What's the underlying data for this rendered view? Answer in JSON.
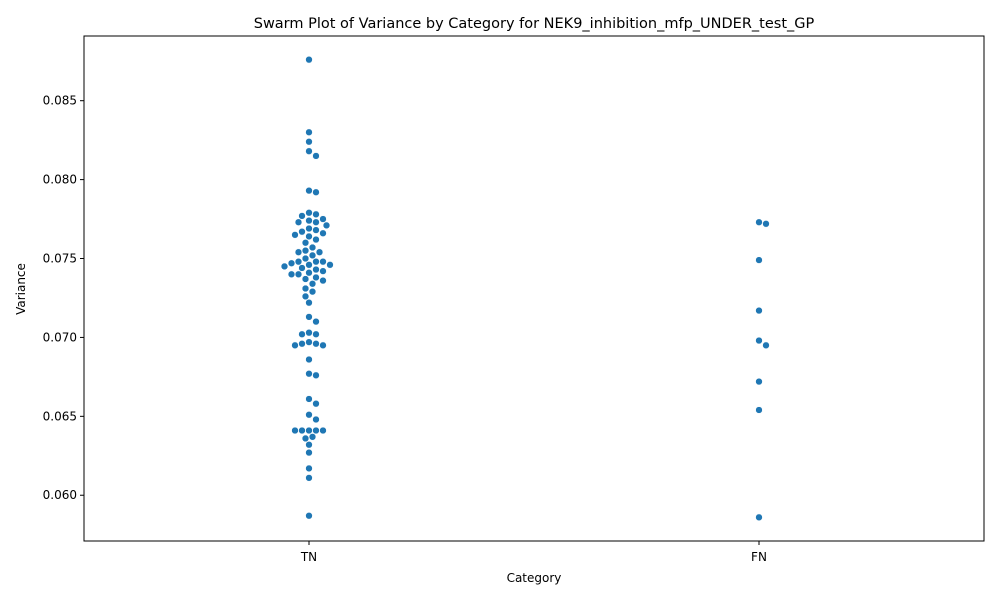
{
  "chart_data": {
    "type": "scatter",
    "subtype": "swarm",
    "title": "Swarm Plot of Variance by Category for NEK9_inhibition_mfp_UNDER_test_GP",
    "xlabel": "Category",
    "ylabel": "Variance",
    "categories": [
      "TN",
      "FN"
    ],
    "ylim": [
      0.0571,
      0.0891
    ],
    "yticks": [
      0.06,
      0.065,
      0.07,
      0.075,
      0.08,
      0.085
    ],
    "ytick_labels": [
      "0.060",
      "0.065",
      "0.070",
      "0.075",
      "0.080",
      "0.085"
    ],
    "grid": false,
    "legend": "none",
    "point_color": "#1f77b4",
    "series": [
      {
        "category": "TN",
        "values": [
          0.0876,
          0.083,
          0.0824,
          0.0818,
          0.0815,
          0.0793,
          0.0792,
          0.0779,
          0.0778,
          0.0777,
          0.0775,
          0.0774,
          0.0773,
          0.0773,
          0.0771,
          0.0769,
          0.0768,
          0.0767,
          0.0766,
          0.0765,
          0.0764,
          0.0762,
          0.076,
          0.0757,
          0.0755,
          0.0754,
          0.0754,
          0.0752,
          0.075,
          0.0748,
          0.0748,
          0.0748,
          0.0747,
          0.0746,
          0.0746,
          0.0745,
          0.0744,
          0.0743,
          0.0742,
          0.0741,
          0.074,
          0.074,
          0.0738,
          0.0737,
          0.0736,
          0.0734,
          0.0731,
          0.0729,
          0.0726,
          0.0722,
          0.0713,
          0.071,
          0.0703,
          0.0702,
          0.0702,
          0.0697,
          0.0696,
          0.0696,
          0.0695,
          0.0695,
          0.0686,
          0.0677,
          0.0676,
          0.0661,
          0.0658,
          0.0651,
          0.0648,
          0.0641,
          0.0641,
          0.0641,
          0.0641,
          0.0641,
          0.0637,
          0.0636,
          0.0632,
          0.0627,
          0.0617,
          0.0611,
          0.0587
        ]
      },
      {
        "category": "FN",
        "values": [
          0.0773,
          0.0772,
          0.0749,
          0.0717,
          0.0698,
          0.0695,
          0.0672,
          0.0654,
          0.0586
        ]
      }
    ]
  }
}
